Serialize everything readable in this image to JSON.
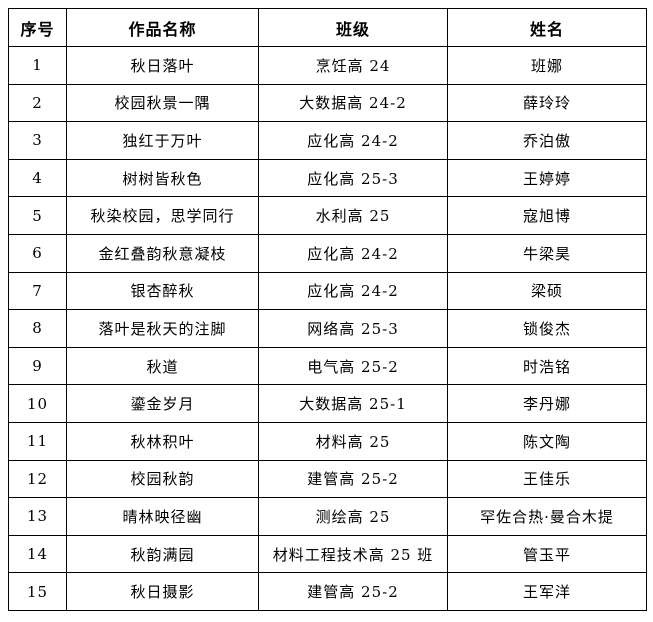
{
  "headers": [
    "序号",
    "作品名称",
    "班级",
    "姓名"
  ],
  "rows": [
    [
      "1",
      "秋日落叶",
      "烹饪高 24",
      "班娜"
    ],
    [
      "2",
      "校园秋景一隅",
      "大数据高 24-2",
      "薛玲玲"
    ],
    [
      "3",
      "独红于万叶",
      "应化高 24-2",
      "乔泊傲"
    ],
    [
      "4",
      "树树皆秋色",
      "应化高 25-3",
      "王婷婷"
    ],
    [
      "5",
      "秋染校园，思学同行",
      "水利高 25",
      "寇旭博"
    ],
    [
      "6",
      "金红叠韵秋意凝枝",
      "应化高 24-2",
      "牛梁昊"
    ],
    [
      "7",
      "银杏醉秋",
      "应化高 24-2",
      "梁硕"
    ],
    [
      "8",
      "落叶是秋天的注脚",
      "网络高 25-3",
      "锁俊杰"
    ],
    [
      "9",
      "秋道",
      "电气高 25-2",
      "时浩铭"
    ],
    [
      "10",
      "鎏金岁月",
      "大数据高 25-1",
      "李丹娜"
    ],
    [
      "11",
      "秋林积叶",
      "材料高 25",
      "陈文陶"
    ],
    [
      "12",
      "校园秋韵",
      "建管高 25-2",
      "王佳乐"
    ],
    [
      "13",
      "晴林映径幽",
      "测绘高 25",
      "罕佐合热·曼合木提"
    ],
    [
      "14",
      "秋韵满园",
      "材料工程技术高 25 班",
      "管玉平"
    ],
    [
      "15",
      "秋日摄影",
      "建管高 25-2",
      "王军洋"
    ]
  ]
}
